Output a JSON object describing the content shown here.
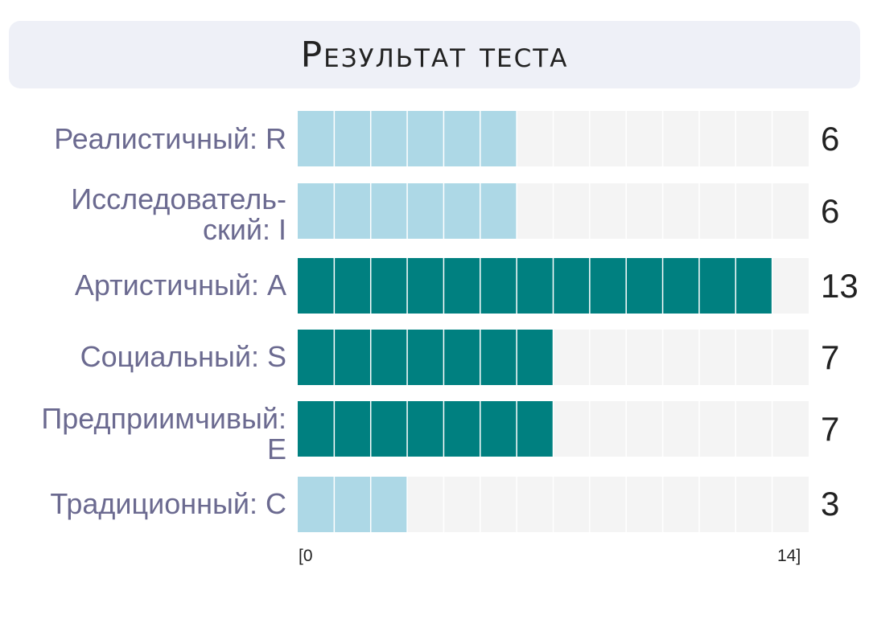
{
  "title": "Результат теста",
  "chart_data": {
    "type": "bar",
    "orientation": "horizontal",
    "xlim": [
      0,
      14
    ],
    "axis_min_label": "[0",
    "axis_max_label": "14]",
    "colors": {
      "light": "#add8e6",
      "dark": "#008080",
      "track": "#f4f4f4",
      "divider": "#ffffff"
    },
    "rows": [
      {
        "label": "Реалистичный: R",
        "value": 6,
        "display": "6",
        "color": "light"
      },
      {
        "label": "Исследователь-ский: I",
        "value": 6,
        "display": "6",
        "color": "light"
      },
      {
        "label": "Артистичный: A",
        "value": 13,
        "display": "13",
        "color": "dark"
      },
      {
        "label": "Социальный: S",
        "value": 7,
        "display": "7",
        "color": "dark"
      },
      {
        "label": "Предприимчивый: E",
        "value": 7,
        "display": "7",
        "color": "dark"
      },
      {
        "label": "Традиционный: C",
        "value": 3,
        "display": "3",
        "color": "light"
      }
    ]
  }
}
